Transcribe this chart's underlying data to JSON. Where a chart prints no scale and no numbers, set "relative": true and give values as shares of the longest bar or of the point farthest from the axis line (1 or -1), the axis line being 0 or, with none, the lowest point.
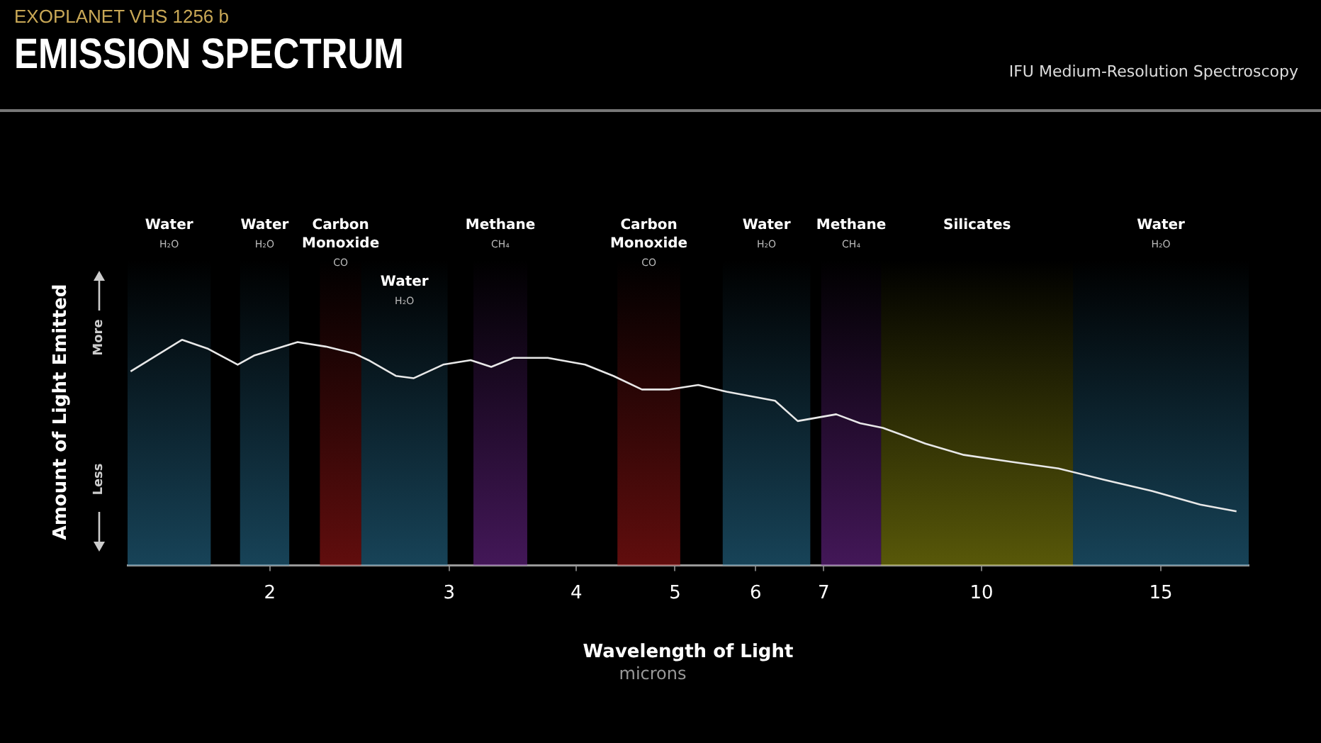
{
  "chart_data": {
    "type": "line",
    "title": "EMISSION SPECTRUM",
    "subtitle": "EXOPLANET VHS 1256 b",
    "xlabel": "Wavelength of Light",
    "ylabel": "Amount of Light Emitted",
    "annotations": [
      "IFU Medium-Resolution Spectroscopy",
      "microns",
      "More",
      "Less"
    ],
    "relative": true,
    "legend": false,
    "xlim": [
      1.45,
      18.3
    ],
    "xticks": [
      2,
      3,
      4,
      5,
      6,
      7,
      10,
      15
    ],
    "log": "x",
    "series": [
      {
        "color": "#e8e8e8",
        "x": [
          1.46,
          1.64,
          1.74,
          1.86,
          1.93,
          2.13,
          2.27,
          2.42,
          2.5,
          2.66,
          2.77,
          2.96,
          3.15,
          3.3,
          3.47,
          3.75,
          4.08,
          4.35,
          4.64,
          4.94,
          5.27,
          5.62,
          6.27,
          6.6,
          7.2,
          7.6,
          8.0,
          8.81,
          9.61,
          10.68,
          11.9,
          13.2,
          14.7,
          16.4,
          17.8
        ],
        "values": [
          0.86,
          1.0,
          0.96,
          0.89,
          0.93,
          0.99,
          0.97,
          0.94,
          0.91,
          0.84,
          0.83,
          0.89,
          0.91,
          0.88,
          0.92,
          0.92,
          0.89,
          0.84,
          0.78,
          0.78,
          0.8,
          0.77,
          0.73,
          0.64,
          0.67,
          0.63,
          0.61,
          0.54,
          0.49,
          0.46,
          0.43,
          0.38,
          0.33,
          0.27,
          0.24
        ]
      }
    ],
    "bands": [
      {
        "axis": "x",
        "from": 1.45,
        "to": 1.75,
        "label": "Water\nH₂O",
        "color": "#2a7aa0"
      },
      {
        "axis": "x",
        "from": 1.87,
        "to": 2.09,
        "label": "Water\nH₂O",
        "color": "#2a7aa0"
      },
      {
        "axis": "x",
        "from": 2.24,
        "to": 2.46,
        "label": "Carbon\nMonoxide\nCO",
        "color": "#b01818"
      },
      {
        "axis": "x",
        "from": 2.46,
        "to": 2.99,
        "label": "Water\nH₂O",
        "color": "#2a7aa0"
      },
      {
        "axis": "x",
        "from": 3.17,
        "to": 3.58,
        "label": "Methane\nCH₄",
        "color": "#7a2aa0"
      },
      {
        "axis": "x",
        "from": 4.39,
        "to": 5.06,
        "label": "Carbon\nMonoxide\nCO",
        "color": "#b01818"
      },
      {
        "axis": "x",
        "from": 5.57,
        "to": 6.79,
        "label": "Water\nH₂O",
        "color": "#2a7aa0"
      },
      {
        "axis": "x",
        "from": 6.96,
        "to": 7.97,
        "label": "Methane\nCH₄",
        "color": "#7a2aa0"
      },
      {
        "axis": "x",
        "from": 7.97,
        "to": 12.3,
        "label": "Silicates",
        "color": "#a0a010"
      },
      {
        "axis": "x",
        "from": 12.3,
        "to": 18.3,
        "label": "Water\nH₂O",
        "color": "#2a7aa0"
      }
    ]
  }
}
